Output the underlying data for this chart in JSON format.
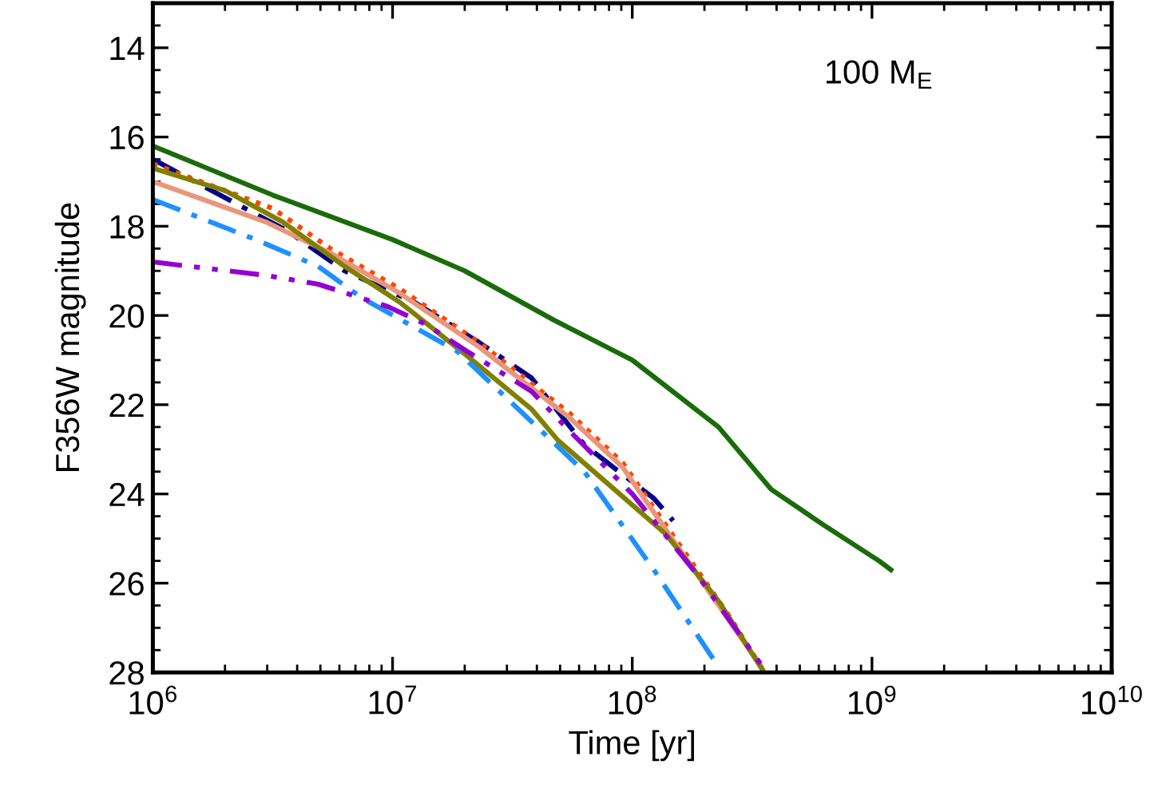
{
  "chart_data": {
    "type": "line",
    "xlabel": "Time [yr]",
    "ylabel": "F356W magnitude",
    "log": "x",
    "grid": false,
    "marker": "none",
    "annotations": [
      "100 M$_{E}$"
    ],
    "xlim": [
      1000000,
      10000000000
    ],
    "xticks": [
      {
        "value": 1000000,
        "label": "10$^{6}$"
      },
      {
        "value": 10000000,
        "label": "10$^{7}$"
      },
      {
        "value": 100000000,
        "label": "10$^{8}$"
      },
      {
        "value": 1000000000,
        "label": "10$^{9}$"
      },
      {
        "value": 10000000000,
        "label": "10$^{10}$"
      }
    ],
    "ylim": [
      28,
      13
    ],
    "yticks": [
      14,
      16,
      18,
      20,
      22,
      24,
      26,
      28
    ],
    "series": [
      {
        "color": "#1a6b0a",
        "line_style": "solid",
        "x": [
          1000000,
          3160000,
          10000000,
          20000000,
          47000000,
          100000000,
          229000000,
          380000000,
          630000000,
          1070000000,
          1200000000
        ],
        "values": [
          16.2,
          17.3,
          18.3,
          19.0,
          20.1,
          21.0,
          22.5,
          23.9,
          24.7,
          25.5,
          25.7
        ]
      },
      {
        "color": "#00008b",
        "line_style": "dashdot",
        "x": [
          1000000,
          3630000,
          6310000,
          12300000,
          22900000,
          38000000,
          63100000,
          123000000,
          148000000
        ],
        "values": [
          16.5,
          18.1,
          19.0,
          19.7,
          20.6,
          21.4,
          22.9,
          24.1,
          24.6
        ]
      },
      {
        "color": "#ff4500",
        "line_style": "dotted",
        "x": [
          1000000,
          3160000,
          5500000,
          10700000,
          22900000,
          55000000,
          91200000,
          151000000,
          251000000,
          347000000
        ],
        "values": [
          16.6,
          17.6,
          18.5,
          19.4,
          20.6,
          22.2,
          23.3,
          25.0,
          26.7,
          27.9
        ]
      },
      {
        "color": "#e9967a",
        "line_style": "solid",
        "x": [
          1000000,
          2950000,
          5500000,
          10700000,
          22900000,
          55000000,
          91200000,
          151000000,
          251000000,
          347000000
        ],
        "values": [
          17.0,
          17.9,
          18.6,
          19.5,
          20.7,
          22.3,
          23.4,
          25.1,
          26.8,
          27.9
        ]
      },
      {
        "color": "#808000",
        "line_style": "solid",
        "x": [
          1000000,
          2000000,
          3470000,
          6310000,
          10700000,
          20400000,
          38000000,
          49000000,
          138000000,
          229000000,
          355000000
        ],
        "values": [
          16.7,
          17.2,
          17.9,
          18.9,
          19.7,
          20.9,
          22.1,
          22.8,
          24.9,
          26.4,
          28.0
        ]
      },
      {
        "color": "#1e90ff",
        "line_style": "dashdot",
        "x": [
          1000000,
          2690000,
          4900000,
          7410000,
          18600000,
          63100000,
          123000000,
          224000000
        ],
        "values": [
          17.4,
          18.3,
          18.9,
          19.6,
          20.8,
          23.5,
          25.7,
          27.8
        ]
      },
      {
        "color": "#9400d3",
        "line_style": "dashdotdot",
        "x": [
          1000000,
          2950000,
          4900000,
          9550000,
          13800000,
          20400000,
          38000000,
          55000000,
          100000000,
          186000000,
          347000000
        ],
        "values": [
          18.8,
          19.1,
          19.3,
          19.8,
          20.2,
          20.8,
          21.7,
          22.6,
          24.0,
          25.8,
          27.85
        ]
      }
    ]
  }
}
